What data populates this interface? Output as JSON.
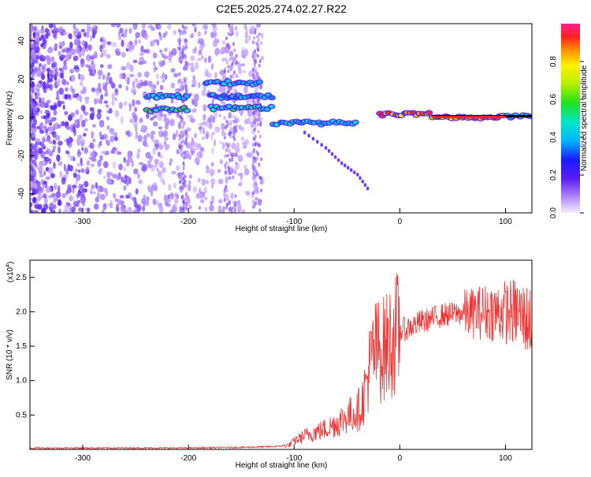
{
  "title": "C2E5.2025.274.02.27.R22",
  "chart_data": [
    {
      "type": "heatmap",
      "xlabel": "Height of straight line (km)",
      "ylabel": "Frequency (Hz)",
      "xlim": [
        -350,
        125
      ],
      "ylim": [
        -50,
        49
      ],
      "x_ticks": [
        -300,
        -200,
        -100,
        0,
        100
      ],
      "y_ticks": [
        -40,
        -20,
        0,
        20,
        40
      ],
      "colorbar": {
        "label": "Normalized spectral amplitude",
        "range": [
          0,
          1
        ],
        "ticks": [
          0.0,
          0.2,
          0.4,
          0.6,
          0.8
        ]
      },
      "bands": [
        {
          "x_start": -240,
          "x_end": -200,
          "freq": 4,
          "amplitude": 0.55
        },
        {
          "x_start": -240,
          "x_end": -200,
          "freq": 11,
          "amplitude": 0.45
        },
        {
          "x_start": -185,
          "x_end": -130,
          "freq": 18,
          "amplitude": 0.45
        },
        {
          "x_start": -180,
          "x_end": -120,
          "freq": 11,
          "amplitude": 0.4
        },
        {
          "x_start": -180,
          "x_end": -120,
          "freq": 5,
          "amplitude": 0.5
        },
        {
          "x_start": -120,
          "x_end": -40,
          "freq": -3,
          "amplitude": 0.45
        },
        {
          "x_start": -20,
          "x_end": 30,
          "freq": 1.5,
          "amplitude": 0.9
        },
        {
          "x_start": 30,
          "x_end": 100,
          "freq": 0,
          "amplitude": 0.95
        },
        {
          "x_start": 100,
          "x_end": 125,
          "freq": 0.5,
          "amplitude": 0.5
        }
      ],
      "tail": [
        [
          -90,
          -8
        ],
        [
          -70,
          -16
        ],
        [
          -55,
          -24
        ],
        [
          -40,
          -30
        ],
        [
          -28,
          -39
        ]
      ]
    },
    {
      "type": "line",
      "xlabel": "Height of straight line (km)",
      "ylabel": "SNR (10 * v/v)",
      "y_multiplier": "(x10",
      "y_multiplier_exp": "4",
      "xlim": [
        -350,
        125
      ],
      "ylim": [
        0,
        2.75
      ],
      "x_ticks": [
        -300,
        -200,
        -100,
        0,
        100
      ],
      "y_ticks": [
        0.5,
        1.0,
        1.5,
        2.0,
        2.5
      ],
      "color": "#ee3333",
      "series": [
        {
          "x": [
            -350,
            -300,
            -250,
            -200,
            -150,
            -120,
            -105,
            -100,
            -90,
            -80,
            -70,
            -60,
            -50,
            -40,
            -35,
            -30,
            -25,
            -20,
            -15,
            -10,
            -5,
            0,
            10,
            20,
            30,
            40,
            50,
            60,
            70,
            80,
            90,
            100,
            110,
            120,
            125
          ],
          "y": [
            0.02,
            0.02,
            0.02,
            0.02,
            0.03,
            0.04,
            0.06,
            0.12,
            0.2,
            0.25,
            0.3,
            0.38,
            0.48,
            0.55,
            0.7,
            1.1,
            1.4,
            1.45,
            1.45,
            1.55,
            1.65,
            1.72,
            1.78,
            1.85,
            1.9,
            1.95,
            1.97,
            1.98,
            1.98,
            2.0,
            2.0,
            2.0,
            2.0,
            1.9,
            1.85
          ]
        }
      ]
    }
  ]
}
